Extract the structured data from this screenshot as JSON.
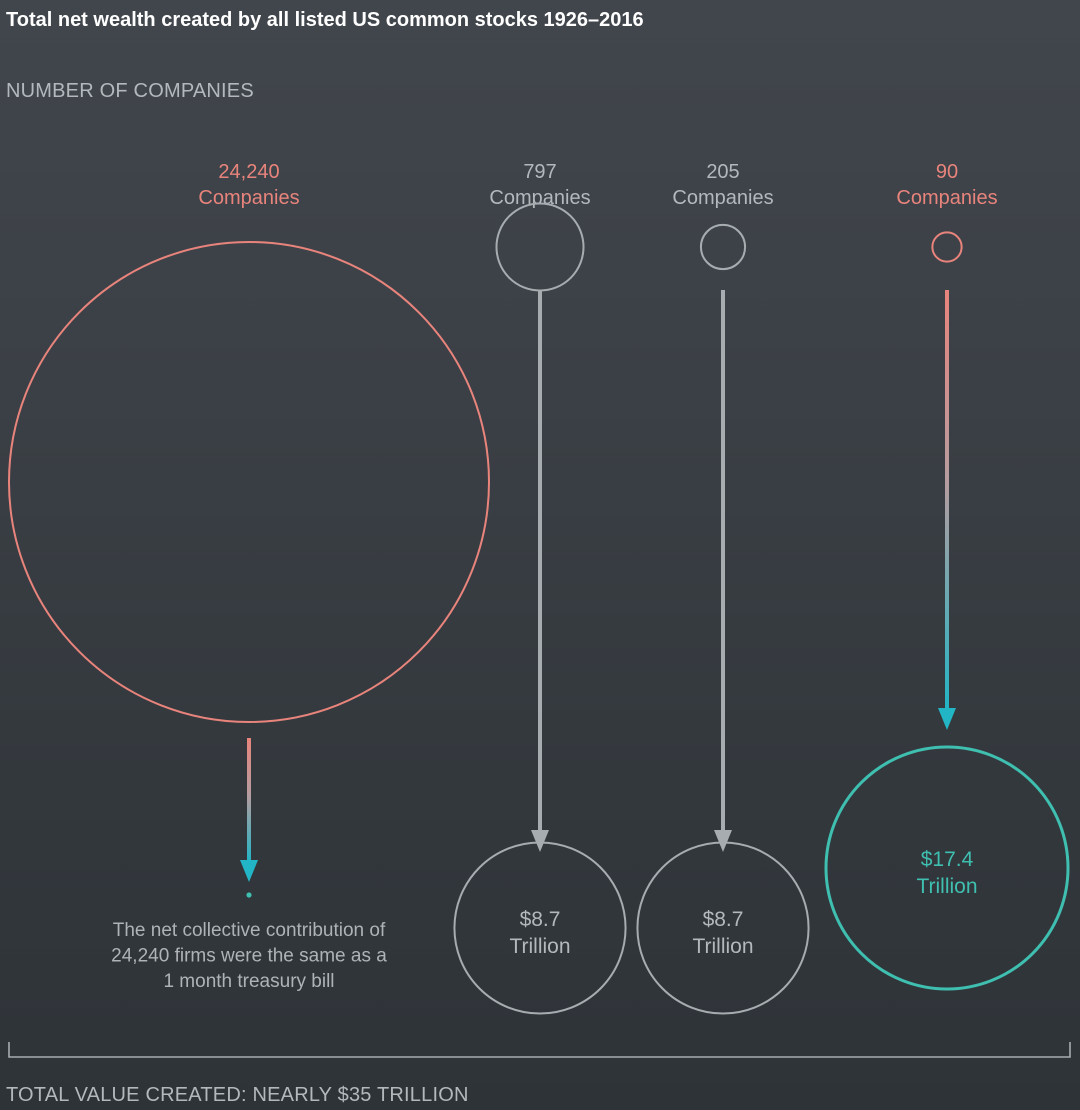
{
  "title": "Total net wealth created by all listed US common stocks 1926–2016",
  "chart_data": {
    "type": "bubble-flow",
    "title": "Total net wealth created by all listed US common stocks 1926–2016",
    "top_label": "NUMBER OF COMPANIES",
    "bottom_label": "TOTAL VALUE CREATED: NEARLY $35 TRILLION",
    "groups": [
      {
        "companies": 24240,
        "count_label": "24,240",
        "unit_label": "Companies",
        "value_trillion": 0,
        "value_line1": "",
        "value_line2": "",
        "note": [
          "The net collective contribution of",
          "24,240 firms were the same as a",
          "1 month treasury bill"
        ],
        "color_scheme": "highlight-to-teal"
      },
      {
        "companies": 797,
        "count_label": "797",
        "unit_label": "Companies",
        "value_trillion": 8.7,
        "value_line1": "$8.7",
        "value_line2": "Trillion",
        "note": [],
        "color_scheme": "gray"
      },
      {
        "companies": 205,
        "count_label": "205",
        "unit_label": "Companies",
        "value_trillion": 8.7,
        "value_line1": "$8.7",
        "value_line2": "Trillion",
        "note": [],
        "color_scheme": "gray"
      },
      {
        "companies": 90,
        "count_label": "90",
        "unit_label": "Companies",
        "value_trillion": 17.4,
        "value_line1": "$17.4",
        "value_line2": "Trillion",
        "note": [],
        "color_scheme": "highlight-to-teal"
      }
    ]
  },
  "colors": {
    "salmon": "#e8847c",
    "teal": "#3fbfb0",
    "arrow_teal": "#22b5c5",
    "gray": "#a7acb1",
    "gray_text": "#b3b8bd",
    "white": "#ffffff"
  }
}
